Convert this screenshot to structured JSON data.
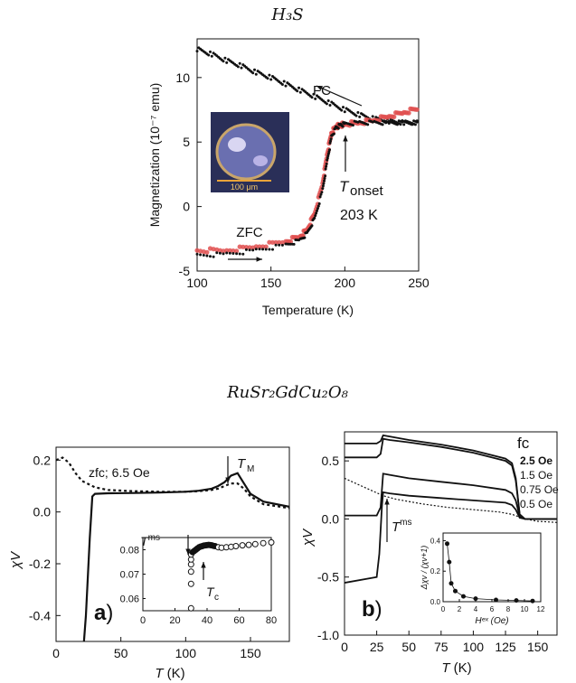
{
  "titles": {
    "top": "H₃S",
    "bottom": "RuSr₂GdCu₂O₈"
  },
  "chart_data": [
    {
      "type": "scatter",
      "title": "H₃S",
      "xlabel": "Temperature (K)",
      "ylabel": "Magnetization (10⁻⁷ emu)",
      "xlim": [
        100,
        250
      ],
      "ylim": [
        -5,
        13
      ],
      "xticks": [
        100,
        150,
        200,
        250
      ],
      "yticks": [
        -5,
        0,
        5,
        10
      ],
      "series": [
        {
          "name": "FC",
          "color": "#111111",
          "x": [
            100,
            110,
            120,
            130,
            140,
            150,
            160,
            170,
            180,
            190,
            200,
            210,
            220,
            230,
            240,
            250
          ],
          "y": [
            12.2,
            11.8,
            11.3,
            10.9,
            10.4,
            10.0,
            9.5,
            9.0,
            8.5,
            8.0,
            7.5,
            7.1,
            6.8,
            6.6,
            6.5,
            6.5
          ]
        },
        {
          "name": "ZFC",
          "color": "#111111",
          "x": [
            100,
            120,
            140,
            160,
            170,
            175,
            180,
            185,
            188,
            191,
            194,
            197,
            200,
            210,
            220,
            230,
            240,
            250
          ],
          "y": [
            -3.8,
            -3.7,
            -3.4,
            -3.0,
            -2.6,
            -2.0,
            -0.8,
            1.3,
            3.5,
            5.4,
            6.1,
            6.3,
            6.4,
            6.5,
            6.5,
            6.5,
            6.5,
            6.5
          ]
        },
        {
          "name": "ZFC",
          "color": "#e05050",
          "x": [
            100,
            120,
            140,
            160,
            170,
            175,
            180,
            185,
            188,
            191,
            194,
            197,
            200,
            210,
            220,
            230,
            240,
            250
          ],
          "y": [
            -3.4,
            -3.4,
            -3.1,
            -2.7,
            -2.3,
            -1.7,
            -0.4,
            1.8,
            4.0,
            5.7,
            6.2,
            6.3,
            6.4,
            6.5,
            6.7,
            7.0,
            7.3,
            7.6
          ]
        }
      ],
      "annotations": {
        "fc": "FC",
        "zfc": "ZFC",
        "tonset_t": "T",
        "tonset_sub": "onset",
        "tonset_val": "203 K",
        "scale": "100 μm"
      }
    },
    {
      "type": "line",
      "label": "a)",
      "xlabel_t": "T",
      "xlabel_unit": " (K)",
      "ylabel": "χV",
      "xlim": [
        0,
        180
      ],
      "ylim": [
        -0.5,
        0.25
      ],
      "xticks": [
        0,
        50,
        100,
        150
      ],
      "yticks": [
        -0.4,
        -0.2,
        0.0,
        0.2
      ],
      "legend_text": "zfc; 6.5 Oe",
      "tm_t": "T",
      "tm_sub": "M",
      "series": [
        {
          "name": "zfc",
          "style": "solid",
          "x": [
            0,
            20,
            23,
            26,
            28,
            30,
            40,
            60,
            80,
            100,
            110,
            120,
            125,
            130,
            135,
            140,
            145,
            150,
            160,
            180
          ],
          "y": [
            -0.6,
            -0.6,
            -0.4,
            -0.1,
            0.06,
            0.07,
            0.072,
            0.073,
            0.075,
            0.078,
            0.082,
            0.09,
            0.1,
            0.115,
            0.14,
            0.15,
            0.11,
            0.07,
            0.04,
            0.02
          ]
        },
        {
          "name": "fc",
          "style": "dashed",
          "x": [
            0,
            5,
            10,
            15,
            20,
            30,
            40,
            60,
            80,
            100,
            110,
            120,
            125,
            130,
            135,
            140,
            145,
            150,
            160,
            180
          ],
          "y": [
            0.2,
            0.21,
            0.19,
            0.15,
            0.12,
            0.095,
            0.085,
            0.08,
            0.078,
            0.078,
            0.08,
            0.085,
            0.09,
            0.1,
            0.11,
            0.11,
            0.09,
            0.06,
            0.03,
            0.015
          ]
        }
      ],
      "inset": {
        "xlim": [
          0,
          80
        ],
        "ylim": [
          0.055,
          0.085
        ],
        "xticks": [
          0,
          20,
          40,
          60,
          80
        ],
        "yticks": [
          0.06,
          0.07,
          0.08
        ],
        "x": [
          30,
          30,
          30,
          30,
          30,
          30,
          31,
          32,
          33,
          34,
          35,
          36,
          37,
          38,
          39,
          40,
          41,
          42,
          43,
          44,
          45,
          47,
          49,
          52,
          55,
          58,
          62,
          66,
          70,
          75,
          80
        ],
        "y": [
          0.056,
          0.066,
          0.071,
          0.074,
          0.076,
          0.078,
          0.079,
          0.0795,
          0.08,
          0.0805,
          0.081,
          0.0813,
          0.0815,
          0.0817,
          0.0818,
          0.0819,
          0.082,
          0.0819,
          0.0818,
          0.0816,
          0.0815,
          0.081,
          0.0808,
          0.081,
          0.0812,
          0.0815,
          0.0818,
          0.082,
          0.0823,
          0.0827,
          0.083
        ],
        "tms_t": "T",
        "tms_sup": "ms",
        "tc_t": "T",
        "tc_sub": "c"
      }
    },
    {
      "type": "line",
      "label": "b)",
      "xlabel_t": "T",
      "xlabel_unit": " (K)",
      "ylabel": "χV",
      "xlim": [
        0,
        165
      ],
      "ylim": [
        -1.0,
        0.75
      ],
      "xticks": [
        0,
        25,
        50,
        75,
        100,
        125,
        150
      ],
      "yticks": [
        -1.0,
        -0.5,
        0.0,
        0.5
      ],
      "fc_label": "fc",
      "legend": [
        "2.5 Oe",
        "1.5 Oe",
        "0.75 Oe",
        "0.5 Oe"
      ],
      "tms_t": "T",
      "tms_sup": "ms",
      "series": [
        {
          "name": "2.5 Oe",
          "style": "solid",
          "x": [
            0,
            25,
            28,
            30,
            35,
            50,
            75,
            100,
            125,
            130,
            133,
            136,
            140,
            165
          ],
          "y": [
            0.65,
            0.65,
            0.67,
            0.72,
            0.71,
            0.68,
            0.64,
            0.59,
            0.52,
            0.48,
            0.35,
            0.04,
            0.0,
            0.0
          ]
        },
        {
          "name": "1.5 Oe",
          "style": "solid",
          "x": [
            0,
            25,
            28,
            30,
            35,
            50,
            75,
            100,
            125,
            130,
            133,
            136,
            140,
            165
          ],
          "y": [
            0.53,
            0.53,
            0.56,
            0.69,
            0.68,
            0.66,
            0.62,
            0.57,
            0.5,
            0.46,
            0.33,
            0.04,
            0.0,
            0.0
          ]
        },
        {
          "name": "0.75 Oe",
          "style": "solid",
          "x": [
            0,
            25,
            28,
            30,
            35,
            50,
            75,
            100,
            125,
            130,
            133,
            136,
            140,
            165
          ],
          "y": [
            0.03,
            0.03,
            0.1,
            0.39,
            0.38,
            0.35,
            0.32,
            0.29,
            0.25,
            0.22,
            0.16,
            0.02,
            0.0,
            0.0
          ]
        },
        {
          "name": "0.5 Oe",
          "style": "solid",
          "x": [
            0,
            25,
            27,
            29,
            30,
            35,
            50,
            75,
            100,
            125,
            130,
            133,
            136,
            140,
            165
          ],
          "y": [
            -0.55,
            -0.5,
            -0.3,
            0.1,
            0.23,
            0.22,
            0.2,
            0.18,
            0.16,
            0.14,
            0.12,
            0.08,
            0.01,
            0.0,
            0.0
          ]
        },
        {
          "name": "zfc",
          "style": "dotted",
          "x": [
            0,
            10,
            20,
            30,
            40,
            60,
            80,
            100,
            120,
            130,
            135,
            140,
            150,
            165
          ],
          "y": [
            0.35,
            0.3,
            0.25,
            0.2,
            0.17,
            0.13,
            0.1,
            0.08,
            0.06,
            0.04,
            0.02,
            0.0,
            -0.02,
            -0.03
          ]
        }
      ],
      "inset": {
        "xlim": [
          0,
          12
        ],
        "ylim": [
          0,
          0.45
        ],
        "xticks": [
          0,
          2,
          4,
          6,
          8,
          10,
          12
        ],
        "yticks": [
          0.0,
          0.2,
          0.4
        ],
        "x": [
          0.5,
          0.75,
          1.0,
          1.5,
          2.5,
          4.0,
          6.5,
          9.0,
          11.0
        ],
        "y": [
          0.38,
          0.26,
          0.12,
          0.07,
          0.035,
          0.02,
          0.012,
          0.008,
          0.005
        ],
        "xlabel": "Hᵉˣ (Oe)",
        "ylabel": "Δχv / (χv+1)"
      }
    }
  ]
}
